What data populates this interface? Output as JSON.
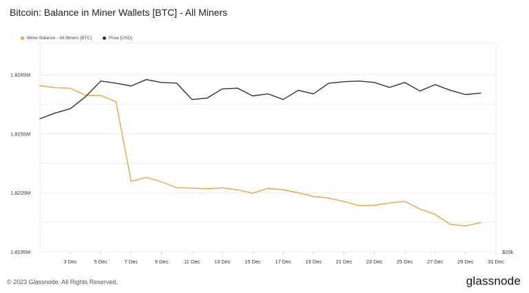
{
  "colors": {
    "miner_balance": "#f2a23b",
    "price": "#2f3033",
    "grid": "#ececec",
    "axis_text": "#333333"
  },
  "footer": {
    "copyright": "© 2023 Glassnode. All Rights Reserved.",
    "brand": "glassnode"
  },
  "chart_data": {
    "type": "line",
    "title": "Bitcoin: Balance in Miner Wallets [BTC] - All Miners",
    "legend_position": "top-left",
    "grid": true,
    "x_ticks": [
      "3 Dec",
      "5 Dec",
      "7 Dec",
      "9 Dec",
      "11 Dec",
      "13 Dec",
      "15 Dec",
      "17 Dec",
      "19 Dec",
      "21 Dec",
      "23 Dec",
      "25 Dec",
      "27 Dec",
      "29 Dec",
      "31 Dec"
    ],
    "x_range": [
      "2023-12-01",
      "2023-12-31"
    ],
    "y_left": {
      "ticks": [
        "1.8285M",
        "1.8255M",
        "1.8225M",
        "1.8195M"
      ],
      "tick_values": [
        1.8285,
        1.8255,
        1.8225,
        1.8195
      ],
      "range": [
        1.8195,
        1.8301
      ]
    },
    "y_right": {
      "ticks": [
        "$20k"
      ]
    },
    "series": [
      {
        "name": "Miner Balance - All Miners [BTC]",
        "axis": "left",
        "x": [
          "2023-12-01",
          "2023-12-02",
          "2023-12-03",
          "2023-12-04",
          "2023-12-05",
          "2023-12-06",
          "2023-12-07",
          "2023-12-08",
          "2023-12-09",
          "2023-12-10",
          "2023-12-11",
          "2023-12-12",
          "2023-12-13",
          "2023-12-14",
          "2023-12-15",
          "2023-12-16",
          "2023-12-17",
          "2023-12-18",
          "2023-12-19",
          "2023-12-20",
          "2023-12-21",
          "2023-12-22",
          "2023-12-23",
          "2023-12-24",
          "2023-12-25",
          "2023-12-26",
          "2023-12-27",
          "2023-12-28",
          "2023-12-29",
          "2023-12-30"
        ],
        "values": [
          1.82795,
          1.82784,
          1.82782,
          1.82746,
          1.82745,
          1.82713,
          1.82308,
          1.82328,
          1.82305,
          1.82276,
          1.82274,
          1.8227,
          1.82275,
          1.82265,
          1.82248,
          1.82272,
          1.82265,
          1.8225,
          1.82231,
          1.82223,
          1.82206,
          1.82184,
          1.82186,
          1.82198,
          1.82206,
          1.82167,
          1.8214,
          1.82089,
          1.82082,
          1.82098
        ]
      },
      {
        "name": "Price [USD]",
        "axis": "right",
        "x": [
          "2023-12-01",
          "2023-12-02",
          "2023-12-03",
          "2023-12-04",
          "2023-12-05",
          "2023-12-06",
          "2023-12-07",
          "2023-12-08",
          "2023-12-09",
          "2023-12-10",
          "2023-12-11",
          "2023-12-12",
          "2023-12-13",
          "2023-12-14",
          "2023-12-15",
          "2023-12-16",
          "2023-12-17",
          "2023-12-18",
          "2023-12-19",
          "2023-12-20",
          "2023-12-21",
          "2023-12-22",
          "2023-12-23",
          "2023-12-24",
          "2023-12-25",
          "2023-12-26",
          "2023-12-27",
          "2023-12-28",
          "2023-12-29",
          "2023-12-30"
        ],
        "values": [
          38700,
          39500,
          40100,
          41800,
          44000,
          43700,
          43300,
          44200,
          43800,
          43700,
          41400,
          41600,
          42900,
          43000,
          41900,
          42200,
          41400,
          42700,
          42200,
          43700,
          43900,
          44000,
          43800,
          43100,
          43800,
          42600,
          43500,
          42700,
          42100,
          42300
        ],
        "approximate": true
      }
    ]
  }
}
